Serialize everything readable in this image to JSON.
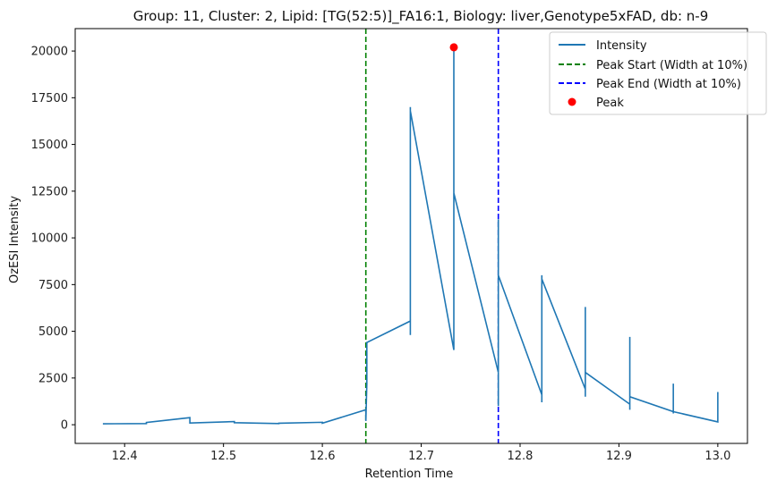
{
  "chart_data": {
    "type": "line",
    "title": "Group: 11, Cluster: 2, Lipid: [TG(52:5)]_FA16:1, Biology: liver,Genotype5xFAD, db: n-9",
    "xlabel": "Retention Time",
    "ylabel": "OzESI Intensity",
    "xlim": [
      12.35,
      13.03
    ],
    "ylim": [
      -1000,
      21200
    ],
    "xticks": [
      12.4,
      12.5,
      12.6,
      12.7,
      12.8,
      12.9,
      13.0
    ],
    "xtick_labels": [
      "12.4",
      "12.5",
      "12.6",
      "12.7",
      "12.8",
      "12.9",
      "13.0"
    ],
    "yticks": [
      0,
      2500,
      5000,
      7500,
      10000,
      12500,
      15000,
      17500,
      20000
    ],
    "ytick_labels": [
      "0",
      "2500",
      "5000",
      "7500",
      "10000",
      "12500",
      "15000",
      "17500",
      "20000"
    ],
    "grid": false,
    "legend_position": "top-right",
    "series": [
      {
        "name": "Intensity",
        "color": "#1f77b4",
        "x": [
          12.378,
          12.422,
          12.422,
          12.466,
          12.466,
          12.511,
          12.511,
          12.556,
          12.556,
          12.6,
          12.6,
          12.644,
          12.644,
          12.645,
          12.645,
          12.689,
          12.689,
          12.689,
          12.689,
          12.733,
          12.733,
          12.733,
          12.733,
          12.778,
          12.778,
          12.778,
          12.778,
          12.822,
          12.822,
          12.822,
          12.822,
          12.866,
          12.866,
          12.866,
          12.866,
          12.911,
          12.911,
          12.911,
          12.911,
          12.955,
          12.955,
          12.955,
          12.955,
          13.0,
          13.0
        ],
        "y": [
          50,
          60,
          120,
          380,
          90,
          170,
          110,
          60,
          80,
          130,
          80,
          800,
          200,
          2200,
          4400,
          5550,
          4800,
          17000,
          16800,
          4000,
          20200,
          14000,
          12400,
          2800,
          11000,
          1000,
          8000,
          1600,
          1200,
          8000,
          7800,
          1900,
          1500,
          6300,
          2800,
          1100,
          800,
          4700,
          1500,
          700,
          600,
          2200,
          700,
          150,
          1750
        ]
      }
    ],
    "vlines": [
      {
        "name": "Peak Start (Width at 10%)",
        "x": 12.644,
        "color": "#008000",
        "style": "dashed"
      },
      {
        "name": "Peak End (Width at 10%)",
        "x": 12.778,
        "color": "#0000ff",
        "style": "dashed"
      }
    ],
    "points": [
      {
        "name": "Peak",
        "x": 12.733,
        "y": 20200,
        "color": "#ff0000"
      }
    ]
  }
}
